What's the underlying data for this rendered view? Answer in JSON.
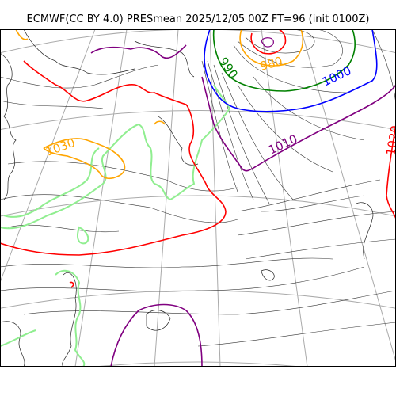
{
  "title": "ECMWF(CC BY 4.0) PRESmean 2025/12/05 00Z FT=96 (init 0100Z)",
  "colors": {
    "c970": "#ff0000",
    "c980": "#ffa500",
    "c990": "#008000",
    "c1000": "#0000ff",
    "c1010": "#800080",
    "c1020": "#ff0000",
    "c1030": "#ffa500",
    "c1040": "#90ee90",
    "coast": "#222222",
    "grid": "#aaaaaa"
  },
  "labels": {
    "l1030": "1030",
    "l990": "990",
    "l980": "980",
    "l1000": "1000",
    "l1010": "1010",
    "l1020": "1020"
  }
}
